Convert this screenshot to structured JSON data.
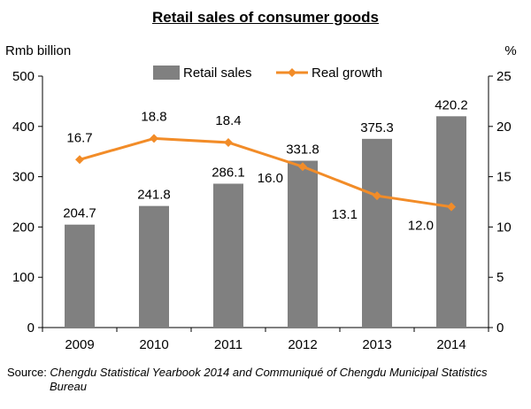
{
  "chart_data": {
    "type": "bar",
    "title": "Retail sales of consumer goods",
    "categories": [
      "2009",
      "2010",
      "2011",
      "2012",
      "2013",
      "2014"
    ],
    "series": [
      {
        "name": "Retail sales",
        "type": "bar",
        "axis": "left",
        "values": [
          204.7,
          241.8,
          286.1,
          331.8,
          375.3,
          420.2
        ],
        "labels": [
          "204.7",
          "241.8",
          "286.1",
          "331.8",
          "375.3",
          "420.2"
        ],
        "color": "#808080"
      },
      {
        "name": "Real growth",
        "type": "line",
        "axis": "right",
        "values": [
          16.7,
          18.8,
          18.4,
          16.0,
          13.1,
          12.0
        ],
        "labels": [
          "16.7",
          "18.8",
          "18.4",
          "16.0",
          "13.1",
          "12.0"
        ],
        "color": "#F28C28"
      }
    ],
    "y_left": {
      "label": "Rmb billion",
      "ylim": [
        0,
        500
      ],
      "ticks": [
        "0",
        "100",
        "200",
        "300",
        "400",
        "500"
      ]
    },
    "y_right": {
      "label": "%",
      "ylim": [
        0,
        25
      ],
      "ticks": [
        "0",
        "5",
        "10",
        "15",
        "20",
        "25"
      ]
    },
    "legend": "top-center",
    "grid": false
  },
  "source": {
    "prefix": "Source: ",
    "line1": "Chengdu Statistical Yearbook 2014 and Communiqué of Chengdu Municipal Statistics",
    "line2": "Bureau"
  }
}
